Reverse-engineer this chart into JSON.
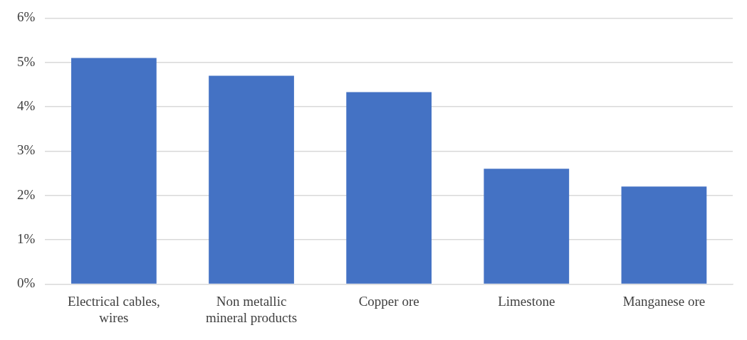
{
  "chart_data": {
    "type": "bar",
    "categories": [
      "Electrical cables, wires",
      "Non metallic mineral products",
      "Copper ore",
      "Limestone",
      "Manganese ore"
    ],
    "values": [
      5.1,
      4.7,
      4.33,
      2.6,
      2.2
    ],
    "color": "#4472c4",
    "ylim": [
      0,
      6
    ],
    "yticks": [
      {
        "value": 0,
        "label": "0%"
      },
      {
        "value": 1,
        "label": "1%"
      },
      {
        "value": 2,
        "label": "2%"
      },
      {
        "value": 3,
        "label": "3%"
      },
      {
        "value": 4,
        "label": "4%"
      },
      {
        "value": 5,
        "label": "5%"
      },
      {
        "value": 6,
        "label": "6%"
      }
    ],
    "grid": "y",
    "legend": false
  }
}
